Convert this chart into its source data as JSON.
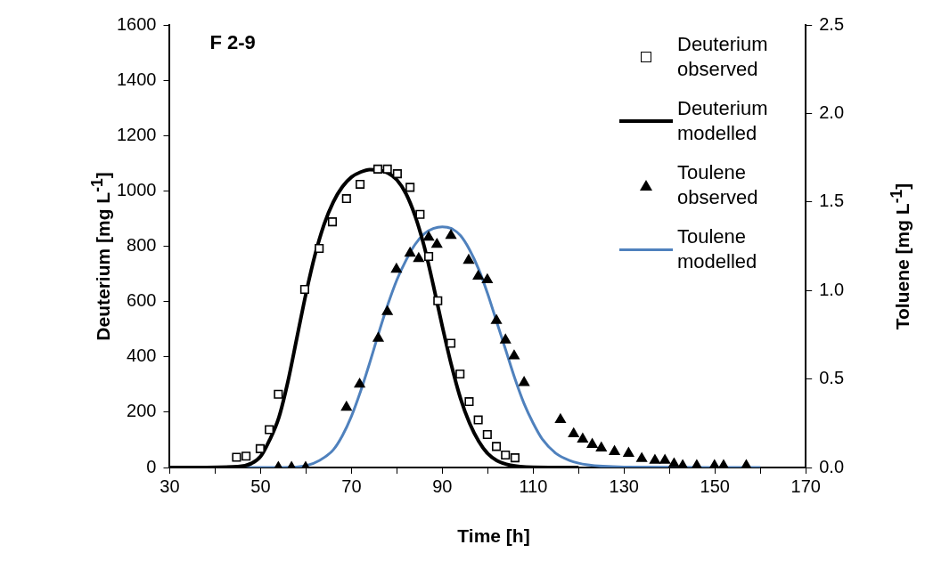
{
  "chart_data": {
    "type": "scatter",
    "xlabel": "Time [h]",
    "ylabel": "Deuterium [mg L$^{-1}$]",
    "y2label": "Toluene [mg L$^{-1}$]",
    "annotations": [
      "F 2-9"
    ],
    "xlim": [
      30,
      170
    ],
    "xticks": [
      30,
      {
        "value": 40,
        "label": null
      },
      50,
      {
        "value": 60,
        "label": null
      },
      70,
      {
        "value": 80,
        "label": null
      },
      90,
      {
        "value": 100,
        "label": null
      },
      110,
      {
        "value": 120,
        "label": null
      },
      130,
      {
        "value": 140,
        "label": null
      },
      150,
      {
        "value": 160,
        "label": null
      },
      170
    ],
    "ylim": [
      0,
      1600
    ],
    "yticks": [
      0,
      200,
      400,
      600,
      800,
      1000,
      1200,
      1400,
      1600
    ],
    "y2lim": [
      0,
      2.5
    ],
    "y2ticks": [
      {
        "value": 0,
        "label": "0.0"
      },
      {
        "value": 0.5,
        "label": "0.5"
      },
      {
        "value": 1,
        "label": "1.0"
      },
      {
        "value": 1.5,
        "label": "1.5"
      },
      {
        "value": 2,
        "label": "2.0"
      },
      {
        "value": 2.5,
        "label": "2.5"
      }
    ],
    "grid": false,
    "legend": "top right",
    "series": [
      {
        "name": "Deuterium observed",
        "type": "scatter",
        "marker": "square",
        "color": "#000000",
        "x": [
          44.7,
          46.8,
          49.9,
          51.9,
          53.9,
          59.7,
          62.9,
          65.8,
          68.9,
          71.9,
          75.8,
          77.9,
          80.1,
          82.9,
          85.1,
          87.0,
          89.0,
          91.9,
          93.9,
          95.9,
          97.9,
          99.9,
          101.9,
          103.9,
          106.0
        ],
        "values": [
          37,
          41,
          68,
          137,
          265,
          644,
          792,
          888,
          972,
          1024,
          1079,
          1079,
          1062,
          1013,
          915,
          763,
          603,
          449,
          338,
          238,
          172,
          119,
          76,
          45,
          35
        ]
      },
      {
        "name": "Deuterium modelled",
        "type": "line",
        "marker": "none",
        "line_style": "solid",
        "color": "#000000",
        "x": [
          30,
          45,
          48,
          50,
          52,
          54,
          56,
          58,
          60,
          62,
          64,
          66,
          68,
          70,
          72,
          74,
          76,
          78,
          80,
          82,
          84,
          86,
          88,
          90,
          92,
          94,
          96,
          98,
          100,
          102,
          105,
          110,
          120
        ],
        "values": [
          0,
          3,
          15,
          40,
          100,
          180,
          310,
          470,
          630,
          770,
          880,
          960,
          1015,
          1050,
          1068,
          1077,
          1075,
          1065,
          1040,
          990,
          910,
          800,
          660,
          510,
          370,
          250,
          160,
          95,
          50,
          25,
          8,
          1,
          0
        ]
      },
      {
        "name": "Toulene observed",
        "type": "scatter",
        "marker": "triangle",
        "axis": "y2",
        "color": "#000000",
        "x": [
          53.9,
          56.8,
          59.9,
          68.9,
          71.8,
          75.9,
          77.9,
          79.9,
          82.9,
          84.8,
          87.0,
          88.8,
          91.9,
          95.8,
          97.9,
          99.9,
          101.9,
          103.9,
          105.8,
          108.0,
          116.0,
          118.9,
          120.9,
          123.0,
          125.0,
          127.9,
          131.0,
          133.9,
          136.8,
          139.0,
          141.0,
          142.9,
          146.0,
          149.9,
          151.9,
          156.9
        ],
        "values": [
          0,
          0,
          0,
          0.34,
          0.47,
          0.73,
          0.88,
          1.12,
          1.21,
          1.18,
          1.3,
          1.26,
          1.31,
          1.17,
          1.08,
          1.06,
          0.83,
          0.72,
          0.63,
          0.48,
          0.27,
          0.19,
          0.16,
          0.13,
          0.11,
          0.09,
          0.08,
          0.05,
          0.04,
          0.04,
          0.02,
          0.01,
          0.01,
          0.01,
          0.01,
          0.01
        ]
      },
      {
        "name": "Toulene modelled",
        "type": "line",
        "marker": "none",
        "line_style": "solid",
        "axis": "y2",
        "color": "#4f81bd",
        "x": [
          30,
          55,
          60,
          63,
          66,
          68,
          70,
          72,
          74,
          76,
          78,
          80,
          82,
          84,
          86,
          88,
          90,
          92,
          94,
          96,
          98,
          100,
          102,
          104,
          106,
          108,
          110,
          112,
          115,
          118,
          122,
          130,
          160
        ],
        "values": [
          0,
          0,
          0.01,
          0.04,
          0.1,
          0.18,
          0.29,
          0.43,
          0.59,
          0.76,
          0.92,
          1.06,
          1.17,
          1.26,
          1.32,
          1.35,
          1.36,
          1.35,
          1.31,
          1.23,
          1.12,
          0.98,
          0.82,
          0.66,
          0.5,
          0.36,
          0.25,
          0.16,
          0.08,
          0.04,
          0.015,
          0.003,
          0
        ]
      }
    ]
  }
}
